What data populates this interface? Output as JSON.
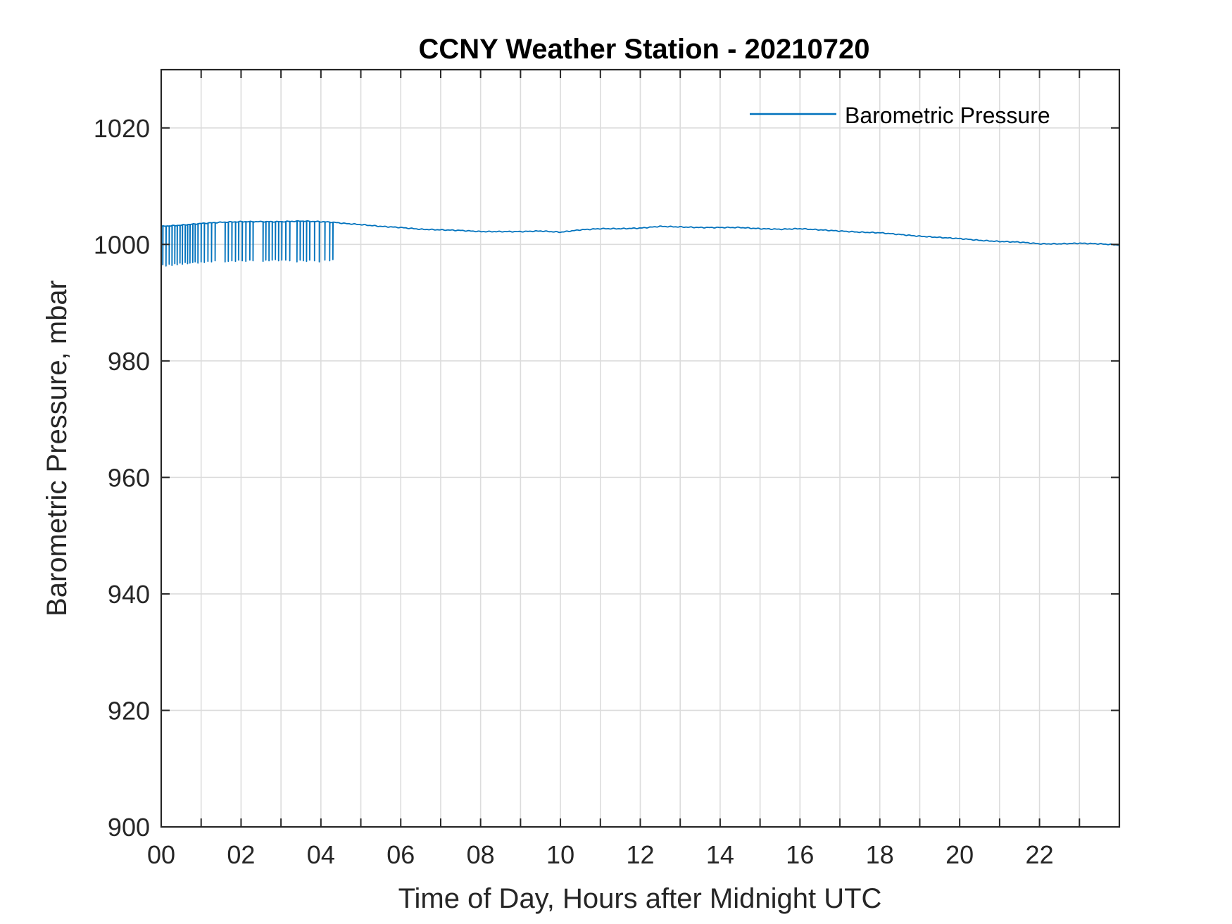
{
  "chart_data": {
    "type": "line",
    "title": "CCNY Weather Station - 20210720",
    "xlabel": "Time of Day, Hours after Midnight UTC",
    "ylabel": "Barometric Pressure, mbar",
    "xlim": [
      0,
      24
    ],
    "ylim": [
      900,
      1030
    ],
    "xticks": [
      0,
      2,
      4,
      6,
      8,
      10,
      12,
      14,
      16,
      18,
      20,
      22
    ],
    "xtick_labels": [
      "00",
      "02",
      "04",
      "06",
      "08",
      "10",
      "12",
      "14",
      "16",
      "18",
      "20",
      "22"
    ],
    "x_minor_grid_step": 1,
    "yticks": [
      900,
      920,
      940,
      960,
      980,
      1000,
      1020
    ],
    "ytick_labels": [
      "900",
      "920",
      "940",
      "960",
      "980",
      "1000",
      "1020"
    ],
    "grid": true,
    "legend_position": "top-right",
    "line_color": "#0072BD",
    "series": [
      {
        "name": "Barometric Pressure",
        "baseline": {
          "x": [
            0.0,
            0.5,
            1.0,
            1.5,
            2.0,
            2.5,
            3.0,
            3.5,
            4.0,
            4.3,
            4.6,
            5.0,
            5.5,
            6.0,
            6.5,
            7.0,
            7.5,
            8.0,
            8.5,
            9.0,
            9.5,
            10.0,
            10.5,
            11.0,
            11.5,
            12.0,
            12.5,
            13.0,
            13.5,
            14.0,
            14.5,
            15.0,
            15.5,
            16.0,
            16.5,
            17.0,
            17.5,
            18.0,
            18.5,
            19.0,
            19.5,
            20.0,
            20.5,
            21.0,
            21.5,
            22.0,
            22.5,
            23.0,
            23.5,
            24.0
          ],
          "y": [
            1003.1,
            1003.3,
            1003.6,
            1003.8,
            1003.9,
            1003.9,
            1003.9,
            1004.0,
            1003.9,
            1003.8,
            1003.6,
            1003.4,
            1003.1,
            1002.9,
            1002.6,
            1002.5,
            1002.4,
            1002.2,
            1002.2,
            1002.2,
            1002.3,
            1002.1,
            1002.5,
            1002.7,
            1002.7,
            1002.8,
            1003.1,
            1003.0,
            1002.9,
            1002.9,
            1002.9,
            1002.7,
            1002.6,
            1002.7,
            1002.5,
            1002.3,
            1002.1,
            1002.0,
            1001.7,
            1001.4,
            1001.2,
            1001.0,
            1000.7,
            1000.5,
            1000.4,
            1000.1,
            1000.1,
            1000.2,
            1000.1,
            999.9
          ]
        },
        "dropouts": {
          "x": [
            0.04,
            0.12,
            0.2,
            0.27,
            0.34,
            0.4,
            0.47,
            0.53,
            0.6,
            0.66,
            0.72,
            0.79,
            0.85,
            0.92,
            1.0,
            1.08,
            1.17,
            1.26,
            1.35,
            1.6,
            1.68,
            1.77,
            1.86,
            1.94,
            2.03,
            2.12,
            2.22,
            2.3,
            2.55,
            2.62,
            2.7,
            2.78,
            2.86,
            2.94,
            3.02,
            3.12,
            3.22,
            3.4,
            3.48,
            3.56,
            3.64,
            3.72,
            3.84,
            3.96,
            4.1,
            4.22,
            4.3
          ],
          "y": [
            996.5,
            996.3,
            996.6,
            996.4,
            996.7,
            996.5,
            996.8,
            996.6,
            996.9,
            996.7,
            996.8,
            996.9,
            997.0,
            996.8,
            997.0,
            996.9,
            997.1,
            997.0,
            997.2,
            997.0,
            997.1,
            997.2,
            997.1,
            997.3,
            997.2,
            997.1,
            997.3,
            997.2,
            997.1,
            997.3,
            997.2,
            997.3,
            997.4,
            997.2,
            997.3,
            997.3,
            997.2,
            997.0,
            997.3,
            997.2,
            997.1,
            997.3,
            997.2,
            997.0,
            997.3,
            997.2,
            997.4
          ]
        }
      }
    ]
  }
}
